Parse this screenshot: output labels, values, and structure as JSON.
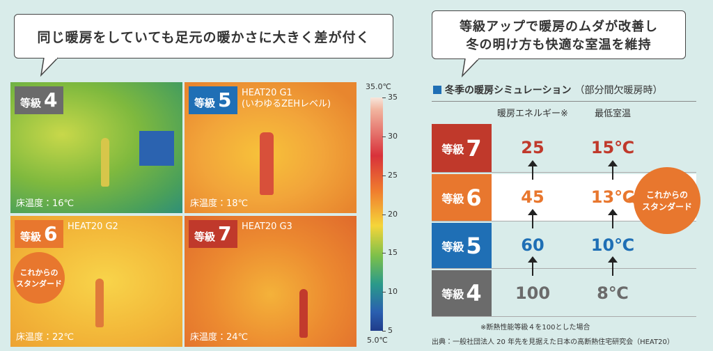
{
  "left": {
    "bubble": "同じ暖房をしていても足元の暖かさに大きく差が付く",
    "panels": [
      {
        "grade_label": "等級",
        "grade": "4",
        "sub": null,
        "floor": "床温度：16℃"
      },
      {
        "grade_label": "等級",
        "grade": "5",
        "sub": "HEAT20 G1\n(いわゆるZEHレベル)",
        "floor": "床温度：18℃"
      },
      {
        "grade_label": "等級",
        "grade": "6",
        "sub": "HEAT20 G2",
        "floor": "床温度：22℃"
      },
      {
        "grade_label": "等級",
        "grade": "7",
        "sub": "HEAT20 G3",
        "floor": "床温度：24℃"
      }
    ],
    "badge": [
      "これからの",
      "スタンダード"
    ]
  },
  "colorbar": {
    "top": "35.0℃",
    "bottom": "5.0℃",
    "ticks": [
      35,
      30,
      25,
      20,
      15,
      10,
      5
    ]
  },
  "right": {
    "bubble": [
      "等級アップで暖房のムダが改善し",
      "冬の明け方も快適な室温を維持"
    ],
    "title": "冬季の暖房シミュレーション",
    "title_note": "（部分間欠暖房時）",
    "headers": [
      "暖房エネルギー※",
      "最低室温"
    ],
    "rows": [
      {
        "grade_label": "等級",
        "grade": "7",
        "energy": "25",
        "temp": "15℃"
      },
      {
        "grade_label": "等級",
        "grade": "6",
        "energy": "45",
        "temp": "13℃"
      },
      {
        "grade_label": "等級",
        "grade": "5",
        "energy": "60",
        "temp": "10℃"
      },
      {
        "grade_label": "等級",
        "grade": "4",
        "energy": "100",
        "temp": "8℃"
      }
    ],
    "badge": [
      "これからの",
      "スタンダード"
    ],
    "note": "※断熱性能等級４を100とした場合",
    "source": "出典：一般社団法人 20 年先を見据えた日本の高断熱住宅研究会（HEAT20）"
  }
}
